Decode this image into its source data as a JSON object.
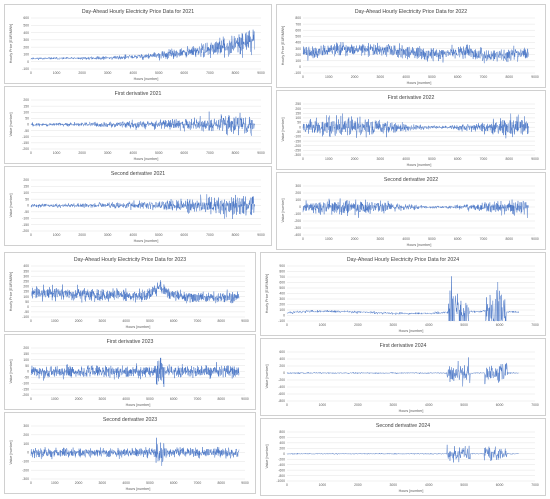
{
  "chart_data": [
    {
      "type": "line",
      "title": "Day-Ahead Hourly Electricity Price Data for 2021",
      "xlabel": "Hours [number]",
      "ylabel": "Hourly Price [EUR/MWh]",
      "xlim": [
        0,
        9000
      ],
      "ylim": [
        -100,
        600
      ],
      "xticks": [
        0,
        1000,
        2000,
        3000,
        4000,
        5000,
        6000,
        7000,
        8000,
        9000
      ],
      "yticks": [
        -100,
        0,
        100,
        200,
        300,
        400,
        500,
        600
      ],
      "n": 8760,
      "seed": 11,
      "profile": "rise2021",
      "grid": true,
      "legend": "none",
      "color": "#4472c4"
    },
    {
      "type": "line",
      "title": "Day-Ahead Hourly Electricity Price Data for 2022",
      "xlabel": "Hours [number]",
      "ylabel": "Hourly Price [EUR/MWh]",
      "xlim": [
        0,
        9000
      ],
      "ylim": [
        -100,
        800
      ],
      "xticks": [
        0,
        1000,
        2000,
        3000,
        4000,
        5000,
        6000,
        7000,
        8000,
        9000
      ],
      "yticks": [
        -100,
        0,
        100,
        200,
        300,
        400,
        500,
        600,
        700,
        800
      ],
      "n": 8760,
      "seed": 22,
      "profile": "high2022",
      "grid": true,
      "legend": "none",
      "color": "#4472c4"
    },
    {
      "type": "line",
      "title": "First derivative  2021",
      "xlabel": "Hours [number]",
      "ylabel": "Value [number]",
      "xlim": [
        0,
        9000
      ],
      "ylim": [
        -200,
        200
      ],
      "xticks": [
        0,
        1000,
        2000,
        3000,
        4000,
        5000,
        6000,
        7000,
        8000,
        9000
      ],
      "yticks": [
        -200,
        -150,
        -100,
        -50,
        0,
        50,
        100,
        150,
        200
      ],
      "n": 8760,
      "seed": 33,
      "profile": "deriv2021",
      "grid": true,
      "legend": "none",
      "color": "#4472c4"
    },
    {
      "type": "line",
      "title": "First derivative  2022",
      "xlabel": "Hours [number]",
      "ylabel": "Value [number]",
      "xlim": [
        0,
        9000
      ],
      "ylim": [
        -300,
        250
      ],
      "xticks": [
        0,
        1000,
        2000,
        3000,
        4000,
        5000,
        6000,
        7000,
        8000,
        9000
      ],
      "yticks": [
        -300,
        -250,
        -200,
        -150,
        -100,
        -50,
        0,
        50,
        100,
        150,
        200,
        250
      ],
      "n": 8760,
      "seed": 44,
      "profile": "deriv2022",
      "grid": true,
      "legend": "none",
      "color": "#4472c4"
    },
    {
      "type": "line",
      "title": "Second derivative  2021",
      "xlabel": "Hours [number]",
      "ylabel": "Value [number]",
      "xlim": [
        0,
        9000
      ],
      "ylim": [
        -200,
        200
      ],
      "xticks": [
        0,
        1000,
        2000,
        3000,
        4000,
        5000,
        6000,
        7000,
        8000,
        9000
      ],
      "yticks": [
        -200,
        -150,
        -100,
        -50,
        0,
        50,
        100,
        150,
        200
      ],
      "n": 8760,
      "seed": 55,
      "profile": "deriv2021",
      "grid": true,
      "legend": "none",
      "color": "#4472c4"
    },
    {
      "type": "line",
      "title": "Second derivative  2022",
      "xlabel": "Hours [number]",
      "ylabel": "Value [number]",
      "xlim": [
        0,
        9000
      ],
      "ylim": [
        -400,
        300
      ],
      "xticks": [
        0,
        1000,
        2000,
        3000,
        4000,
        5000,
        6000,
        7000,
        8000,
        9000
      ],
      "yticks": [
        -400,
        -300,
        -200,
        -100,
        0,
        100,
        200,
        300
      ],
      "n": 8760,
      "seed": 66,
      "profile": "deriv2022",
      "grid": true,
      "legend": "none",
      "color": "#4472c4"
    },
    {
      "type": "line",
      "title": "Day-Ahead Hourly Electricity Price Data for 2023",
      "xlabel": "Hours [number]",
      "ylabel": "Hourly Price [EUR/MWh]",
      "xlim": [
        0,
        9000
      ],
      "ylim": [
        -100,
        400
      ],
      "xticks": [
        0,
        1000,
        2000,
        3000,
        4000,
        5000,
        6000,
        7000,
        8000,
        9000
      ],
      "yticks": [
        -100,
        -50,
        0,
        50,
        100,
        150,
        200,
        250,
        300,
        350,
        400
      ],
      "n": 8760,
      "seed": 77,
      "profile": "mid2023",
      "grid": true,
      "legend": "none",
      "color": "#4472c4"
    },
    {
      "type": "line",
      "title": "Day-Ahead Hourly Electricity Price Data for 2024",
      "xlabel": "Hours [number]",
      "ylabel": "Hourly Price [EUR/MWh]",
      "xlim": [
        0,
        7000
      ],
      "ylim": [
        -100,
        900
      ],
      "xticks": [
        0,
        1000,
        2000,
        3000,
        4000,
        5000,
        6000,
        7000
      ],
      "yticks": [
        -100,
        0,
        100,
        200,
        300,
        400,
        500,
        600,
        700,
        800,
        900
      ],
      "n": 6550,
      "seed": 88,
      "profile": "spike2024",
      "grid": true,
      "legend": "none",
      "color": "#4472c4"
    },
    {
      "type": "line",
      "title": "First derivative  2023",
      "xlabel": "Hours [number]",
      "ylabel": "Value [number]",
      "xlim": [
        0,
        9000
      ],
      "ylim": [
        -200,
        200
      ],
      "xticks": [
        0,
        1000,
        2000,
        3000,
        4000,
        5000,
        6000,
        7000,
        8000,
        9000
      ],
      "yticks": [
        -200,
        -150,
        -100,
        -50,
        0,
        50,
        100,
        150,
        200
      ],
      "n": 8760,
      "seed": 99,
      "profile": "deriv2023",
      "grid": true,
      "legend": "none",
      "color": "#4472c4"
    },
    {
      "type": "line",
      "title": "First derivative  2024",
      "xlabel": "Hours [number]",
      "ylabel": "Value [number]",
      "xlim": [
        0,
        7000
      ],
      "ylim": [
        -800,
        600
      ],
      "xticks": [
        0,
        1000,
        2000,
        3000,
        4000,
        5000,
        6000,
        7000
      ],
      "yticks": [
        -800,
        -600,
        -400,
        -200,
        0,
        200,
        400,
        600
      ],
      "n": 6550,
      "seed": 111,
      "profile": "deriv2024",
      "grid": true,
      "legend": "none",
      "color": "#4472c4"
    },
    {
      "type": "line",
      "title": "Second derivative  2023",
      "xlabel": "Hours [number]",
      "ylabel": "Value [number]",
      "xlim": [
        0,
        9000
      ],
      "ylim": [
        -300,
        300
      ],
      "xticks": [
        0,
        1000,
        2000,
        3000,
        4000,
        5000,
        6000,
        7000,
        8000,
        9000
      ],
      "yticks": [
        -300,
        -200,
        -100,
        0,
        100,
        200,
        300
      ],
      "n": 8760,
      "seed": 122,
      "profile": "deriv2023",
      "grid": true,
      "legend": "none",
      "color": "#4472c4"
    },
    {
      "type": "line",
      "title": "Second derivative  2024",
      "xlabel": "Hours [number]",
      "ylabel": "Value [number]",
      "xlim": [
        0,
        7000
      ],
      "ylim": [
        -1000,
        800
      ],
      "xticks": [
        0,
        1000,
        2000,
        3000,
        4000,
        5000,
        6000,
        7000
      ],
      "yticks": [
        -1000,
        -800,
        -600,
        -400,
        -200,
        0,
        200,
        400,
        600,
        800
      ],
      "n": 6550,
      "seed": 133,
      "profile": "deriv2024",
      "grid": true,
      "legend": "none",
      "color": "#4472c4"
    }
  ]
}
